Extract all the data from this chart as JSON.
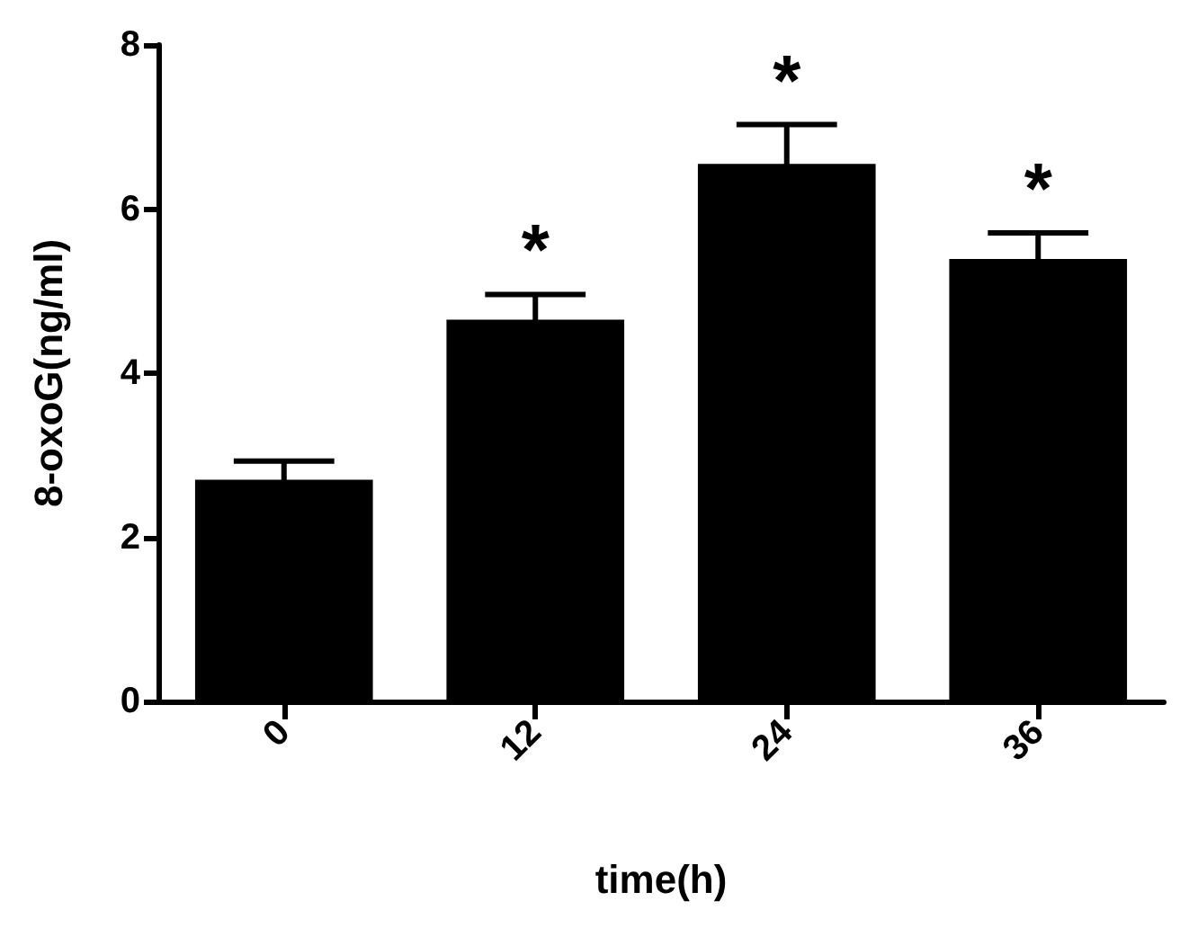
{
  "chart_data": {
    "type": "bar",
    "xlabel": "time(h)",
    "ylabel": "8-oxoG(ng/ml)",
    "categories": [
      "0",
      "12",
      "24",
      "36"
    ],
    "values": [
      2.69,
      4.64,
      6.54,
      5.38
    ],
    "errors": [
      0.24,
      0.32,
      0.49,
      0.33
    ],
    "value_labels": [
      null,
      "*",
      "*",
      "*"
    ],
    "color": "#000000",
    "ylim": [
      0,
      8
    ],
    "yticks": [
      0,
      2,
      4,
      6,
      8
    ],
    "grid": false
  }
}
